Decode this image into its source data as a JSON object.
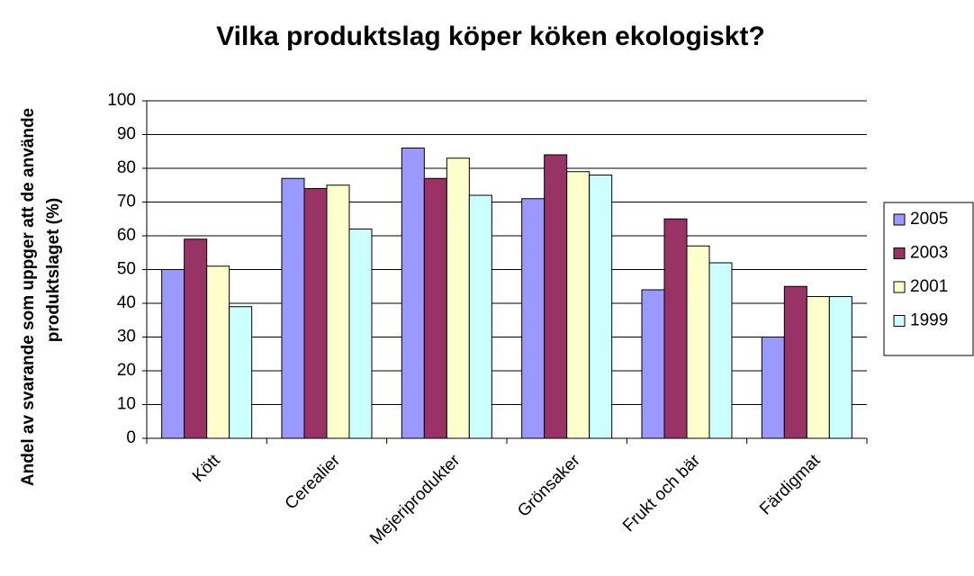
{
  "chart_data": {
    "type": "bar",
    "title": "Vilka produktslag köper köken ekologiskt?",
    "y_label": [
      "Andel av svarande som uppger att de använde",
      "produktslaget (%)"
    ],
    "categories": [
      "Kött",
      "Cerealier",
      "Mejeriprodukter",
      "Grönsaker",
      "Frukt och bär",
      "Färdigmat"
    ],
    "series": [
      {
        "name": "2005",
        "color": "#9999ff",
        "values": [
          50,
          77,
          86,
          71,
          44,
          30
        ]
      },
      {
        "name": "2003",
        "color": "#993366",
        "values": [
          59,
          74,
          77,
          84,
          65,
          45
        ]
      },
      {
        "name": "2001",
        "color": "#ffffcc",
        "values": [
          51,
          75,
          83,
          79,
          57,
          42
        ]
      },
      {
        "name": "1999",
        "color": "#ccffff",
        "values": [
          39,
          62,
          72,
          78,
          52,
          42
        ]
      }
    ],
    "ylim": [
      0,
      100
    ],
    "yticks": [
      0,
      10,
      20,
      30,
      40,
      50,
      60,
      70,
      80,
      90,
      100
    ],
    "grid": true,
    "legend": "right"
  }
}
